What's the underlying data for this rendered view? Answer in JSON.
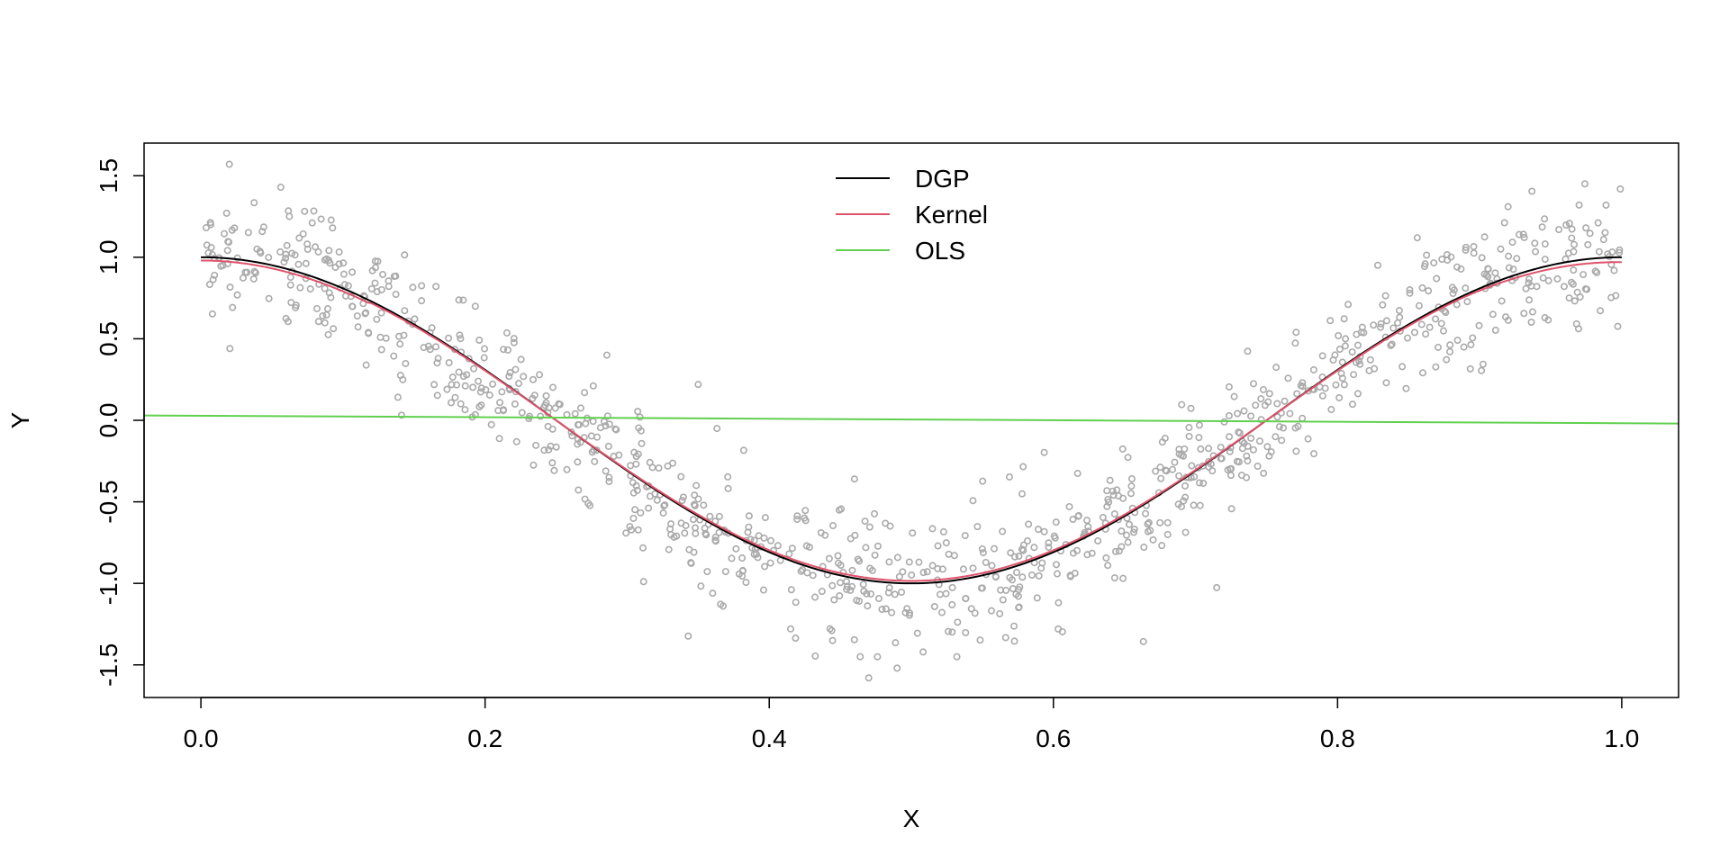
{
  "chart_data": {
    "type": "scatter",
    "title": "",
    "xlabel": "X",
    "ylabel": "Y",
    "xlim": [
      -0.04,
      1.04
    ],
    "ylim": [
      -1.7,
      1.7
    ],
    "x_ticks": [
      0.0,
      0.2,
      0.4,
      0.6,
      0.8,
      1.0
    ],
    "x_tick_labels": [
      "0.0",
      "0.2",
      "0.4",
      "0.6",
      "0.8",
      "1.0"
    ],
    "y_ticks": [
      -1.5,
      -1.0,
      -0.5,
      0.0,
      0.5,
      1.0,
      1.5
    ],
    "y_tick_labels": [
      "-1.5",
      "-1.0",
      "-0.5",
      "0.0",
      "0.5",
      "1.0",
      "1.5"
    ],
    "grid": false,
    "legend_position": "top-center",
    "scatter": {
      "color": "#aaaaaa",
      "n_points": 1000,
      "description_formula": "y = cos(2*pi*x) + noise",
      "noise_sd": 0.2,
      "outliers": [
        {
          "x": 0.02,
          "y": 1.57
        },
        {
          "x": 0.47,
          "y": -1.58
        },
        {
          "x": 0.49,
          "y": -1.52
        },
        {
          "x": 0.46,
          "y": -0.36
        },
        {
          "x": 0.92,
          "y": 1.31
        },
        {
          "x": 0.97,
          "y": 1.32
        },
        {
          "x": 0.35,
          "y": 0.22
        },
        {
          "x": 0.27,
          "y": 0.17
        }
      ]
    },
    "series": [
      {
        "name": "DGP",
        "color": "#000000",
        "kind": "line",
        "function": "cos(2*pi*x)"
      },
      {
        "name": "Kernel",
        "color": "#df536b",
        "kind": "line",
        "function": "kernel smooth of cos(2*pi*x)"
      },
      {
        "name": "OLS",
        "color": "#61d04f",
        "kind": "line",
        "x": [
          0.0,
          1.04
        ],
        "y": [
          0.03,
          -0.02
        ]
      }
    ]
  }
}
